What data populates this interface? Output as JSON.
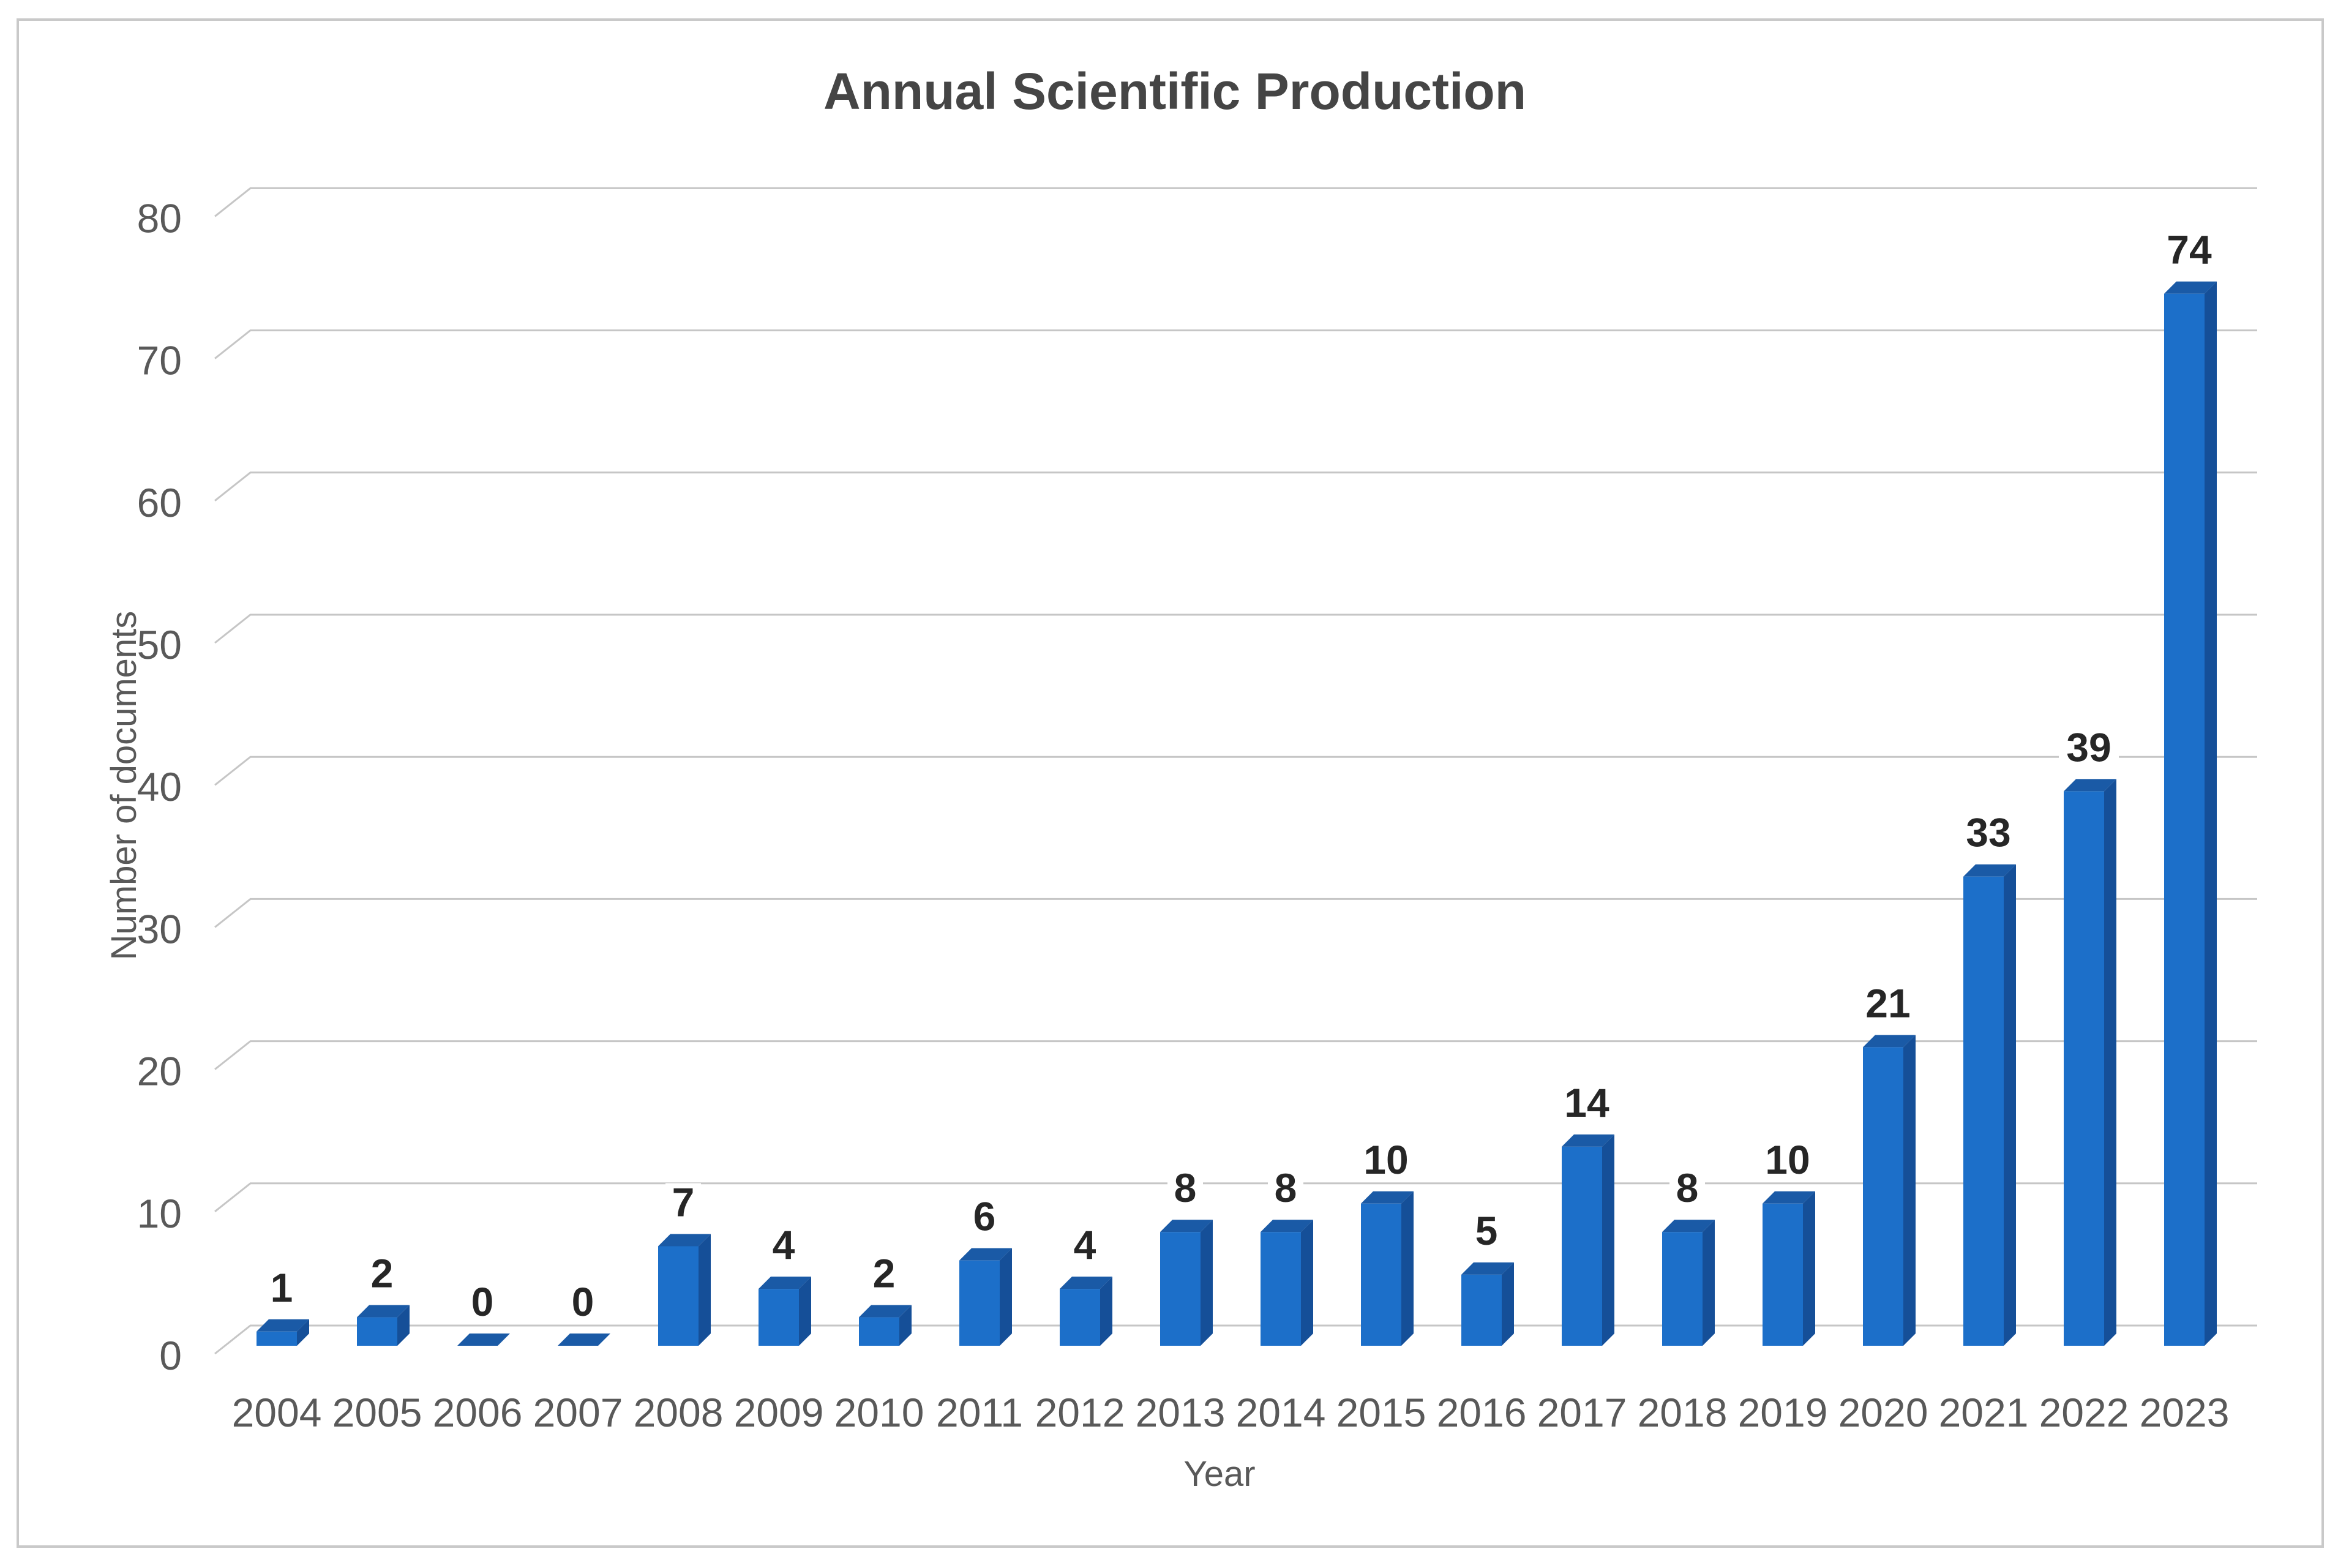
{
  "chart_data": {
    "type": "bar",
    "style": "3d-column",
    "title": "Annual Scientific Production",
    "xlabel": "Year",
    "ylabel": "Number of documents",
    "categories": [
      "2004",
      "2005",
      "2006",
      "2007",
      "2008",
      "2009",
      "2010",
      "2011",
      "2012",
      "2013",
      "2014",
      "2015",
      "2016",
      "2017",
      "2018",
      "2019",
      "2020",
      "2021",
      "2022",
      "2023"
    ],
    "values": [
      1,
      2,
      0,
      0,
      7,
      4,
      2,
      6,
      4,
      8,
      8,
      10,
      5,
      14,
      8,
      10,
      21,
      33,
      39,
      74
    ],
    "ylim": [
      0,
      80
    ],
    "yticks": [
      0,
      10,
      20,
      30,
      40,
      50,
      60,
      70,
      80
    ],
    "grid": true,
    "legend": false,
    "data_labels_shown": true,
    "colors": {
      "bar_front": "#1c6fc9",
      "bar_side": "#154f98",
      "bar_top": "#1a5aa6",
      "grid": "#c6c6c6",
      "axis_text": "#595959",
      "title_text": "#454545",
      "value_label": "#262626",
      "frame_border": "#c9c9c9",
      "background": "#ffffff"
    }
  }
}
